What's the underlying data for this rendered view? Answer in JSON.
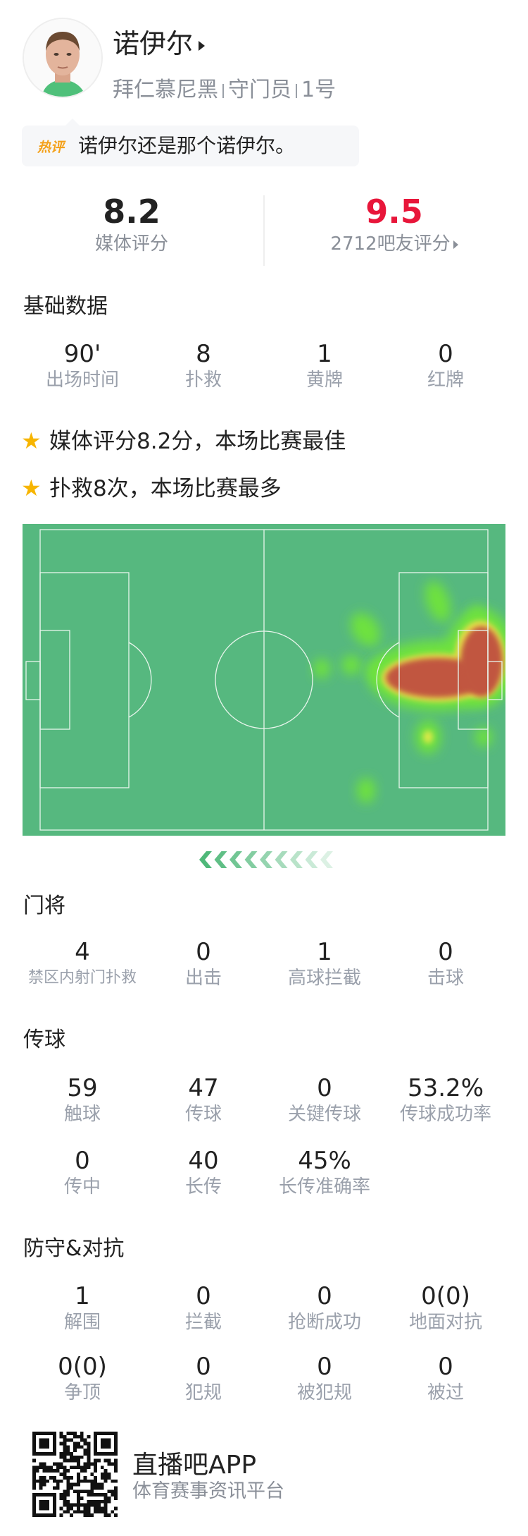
{
  "player": {
    "name": "诺伊尔",
    "team": "拜仁慕尼黑",
    "position": "守门员",
    "number": "1号"
  },
  "hot_comment": {
    "badge": "热评",
    "text": "诺伊尔还是那个诺伊尔。"
  },
  "ratings": {
    "media_score": "8.2",
    "media_label": "媒体评分",
    "fan_score": "9.5",
    "fan_label": "2712吧友评分",
    "fan_color": "#e8163a"
  },
  "basic": {
    "title": "基础数据",
    "items": [
      {
        "value": "90'",
        "label": "出场时间"
      },
      {
        "value": "8",
        "label": "扑救"
      },
      {
        "value": "1",
        "label": "黄牌"
      },
      {
        "value": "0",
        "label": "红牌"
      }
    ]
  },
  "highlights": [
    {
      "icon": "star-icon",
      "text": "媒体评分8.2分，本场比赛最佳"
    },
    {
      "icon": "star-icon",
      "text": "扑救8次，本场比赛最多"
    }
  ],
  "heatmap": {
    "pitch_color": "#56b87f",
    "hot_color": "#c1573f"
  },
  "goalkeeping": {
    "title": "门将",
    "items": [
      {
        "value": "4",
        "label": "禁区内射门扑救"
      },
      {
        "value": "0",
        "label": "出击"
      },
      {
        "value": "1",
        "label": "高球拦截"
      },
      {
        "value": "0",
        "label": "击球"
      }
    ]
  },
  "passing": {
    "title": "传球",
    "items": [
      {
        "value": "59",
        "label": "触球"
      },
      {
        "value": "47",
        "label": "传球"
      },
      {
        "value": "0",
        "label": "关键传球"
      },
      {
        "value": "53.2%",
        "label": "传球成功率"
      },
      {
        "value": "0",
        "label": "传中"
      },
      {
        "value": "40",
        "label": "长传"
      },
      {
        "value": "45%",
        "label": "长传准确率"
      }
    ]
  },
  "defense": {
    "title": "防守&对抗",
    "items": [
      {
        "value": "1",
        "label": "解围"
      },
      {
        "value": "0",
        "label": "拦截"
      },
      {
        "value": "0",
        "label": "抢断成功"
      },
      {
        "value": "0(0)",
        "label": "地面对抗"
      },
      {
        "value": "0(0)",
        "label": "争顶"
      },
      {
        "value": "0",
        "label": "犯规"
      },
      {
        "value": "0",
        "label": "被犯规"
      },
      {
        "value": "0",
        "label": "被过"
      }
    ]
  },
  "footer": {
    "app_name": "直播吧APP",
    "tagline": "体育赛事资讯平台"
  }
}
